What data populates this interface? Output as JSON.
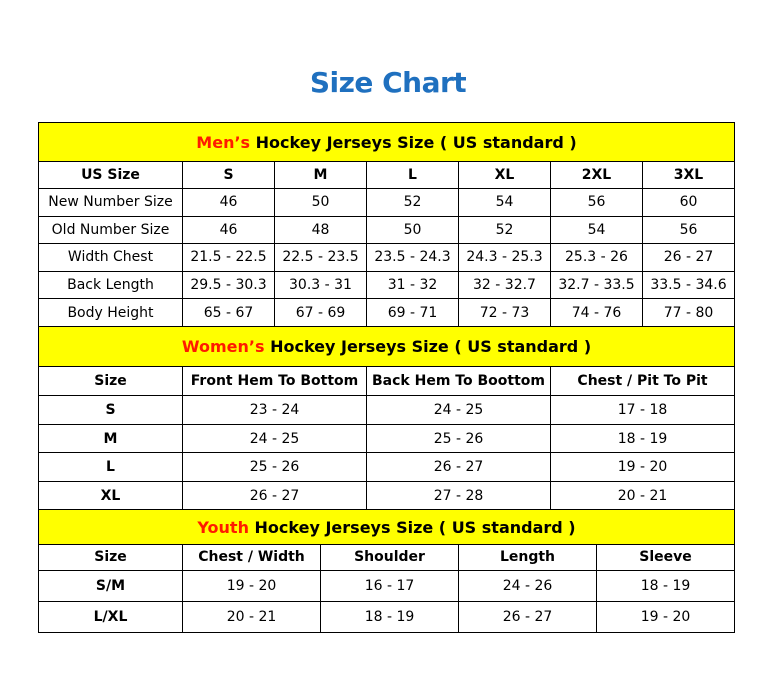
{
  "title": "Size Chart",
  "colors": {
    "title": "#1f70bf",
    "section_header_bg": "#ffff00",
    "section_accent": "#ff1a00",
    "border": "#000000"
  },
  "sections": [
    {
      "id": "men",
      "accent": "Men’s",
      "heading": " Hockey Jerseys Size ( US standard )",
      "columns": [
        "US Size",
        "S",
        "M",
        "L",
        "XL",
        "2XL",
        "3XL"
      ],
      "rows": [
        [
          "New Number Size",
          "46",
          "50",
          "52",
          "54",
          "56",
          "60"
        ],
        [
          "Old Number Size",
          "46",
          "48",
          "50",
          "52",
          "54",
          "56"
        ],
        [
          "Width Chest",
          "21.5 - 22.5",
          "22.5 - 23.5",
          "23.5 - 24.3",
          "24.3 - 25.3",
          "25.3 - 26",
          "26 - 27"
        ],
        [
          "Back Length",
          "29.5 - 30.3",
          "30.3 - 31",
          "31 - 32",
          "32 - 32.7",
          "32.7 - 33.5",
          "33.5 - 34.6"
        ],
        [
          "Body Height",
          "65 - 67",
          "67 - 69",
          "69 - 71",
          "72 - 73",
          "74 - 76",
          "77 - 80"
        ]
      ]
    },
    {
      "id": "women",
      "accent": "Women’s",
      "heading": " Hockey Jerseys Size ( US standard )",
      "columns": [
        "Size",
        "Front Hem To Bottom",
        "Back Hem To Boottom",
        "Chest / Pit To Pit"
      ],
      "rows": [
        [
          "S",
          "23 - 24",
          "24 - 25",
          "17 - 18"
        ],
        [
          "M",
          "24 - 25",
          "25 - 26",
          "18 - 19"
        ],
        [
          "L",
          "25 - 26",
          "26 - 27",
          "19 - 20"
        ],
        [
          "XL",
          "26 - 27",
          "27 - 28",
          "20 - 21"
        ]
      ]
    },
    {
      "id": "youth",
      "accent": "Youth",
      "heading": " Hockey Jerseys Size ( US standard )",
      "columns": [
        "Size",
        "Chest / Width",
        "Shoulder",
        "Length",
        "Sleeve"
      ],
      "rows": [
        [
          "S/M",
          "19 - 20",
          "16 - 17",
          "24 - 26",
          "18 - 19"
        ],
        [
          "L/XL",
          "20 - 21",
          "18 - 19",
          "26 - 27",
          "19 - 20"
        ]
      ]
    }
  ]
}
